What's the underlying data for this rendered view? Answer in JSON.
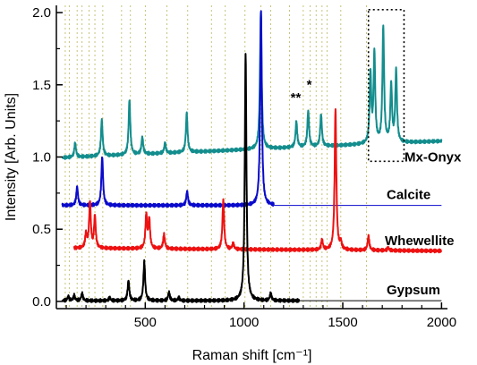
{
  "chart_data": {
    "type": "line",
    "xlabel": "Raman shift [cm⁻¹]",
    "ylabel": "Intensity [Arb. Units]",
    "xlim": [
      50,
      2030
    ],
    "ylim": [
      -0.05,
      2.05
    ],
    "xticks": [
      500,
      1000,
      1500,
      2000
    ],
    "xtick_labels": [
      "500",
      "1000",
      "1500",
      "2000"
    ],
    "xminor_step": 100,
    "yticks": [
      0.0,
      0.5,
      1.0,
      1.5,
      2.0
    ],
    "ytick_labels": [
      "0.0",
      "0.5",
      "1.0",
      "1.5",
      "2.0"
    ],
    "yminor_step": 0.25,
    "reference_lines_x": [
      95,
      115,
      155,
      180,
      215,
      245,
      285,
      380,
      425,
      500,
      610,
      715,
      835,
      905,
      1005,
      1085,
      1135,
      1230,
      1300,
      1335,
      1365,
      1395,
      1420,
      1490,
      1620
    ],
    "annotations": [
      {
        "text": "**",
        "x": 1262,
        "y": 1.38
      },
      {
        "text": "*",
        "x": 1330,
        "y": 1.47
      }
    ],
    "highlight_box": {
      "x": [
        1630,
        1810
      ],
      "y": [
        0.97,
        2.02
      ]
    },
    "series": [
      {
        "name": "Mx-Onyx",
        "color": "#138d8d",
        "baseline": 1.05,
        "slope": 6e-05,
        "x_start": 80,
        "x_end": 2000,
        "peaks": [
          [
            145,
            0.1
          ],
          [
            280,
            0.25
          ],
          [
            420,
            0.38
          ],
          [
            485,
            0.12
          ],
          [
            600,
            0.07
          ],
          [
            710,
            0.27
          ],
          [
            1085,
            0.95
          ],
          [
            1265,
            0.18
          ],
          [
            1325,
            0.25
          ],
          [
            1390,
            0.22
          ],
          [
            1640,
            0.48
          ],
          [
            1660,
            0.62
          ],
          [
            1705,
            0.8
          ],
          [
            1745,
            0.4
          ],
          [
            1770,
            0.5
          ]
        ]
      },
      {
        "name": "Calcite",
        "color": "#0a0acc",
        "baseline": 0.665,
        "slope": 0.0,
        "x_start": 80,
        "x_end": 1150,
        "tail_end": 2000,
        "peaks": [
          [
            155,
            0.13
          ],
          [
            282,
            0.34
          ],
          [
            712,
            0.1
          ],
          [
            1086,
            1.34
          ]
        ]
      },
      {
        "name": "Whewellite",
        "color": "#ee1111",
        "baseline": 0.36,
        "slope": -1e-05,
        "x_start": 140,
        "x_end": 2000,
        "peaks": [
          [
            200,
            0.1
          ],
          [
            220,
            0.32
          ],
          [
            245,
            0.22
          ],
          [
            505,
            0.23
          ],
          [
            520,
            0.2
          ],
          [
            595,
            0.1
          ],
          [
            895,
            0.34
          ],
          [
            945,
            0.04
          ],
          [
            1395,
            0.07
          ],
          [
            1463,
            0.97
          ],
          [
            1490,
            0.05
          ],
          [
            1630,
            0.1
          ],
          [
            1730,
            0.02
          ]
        ]
      },
      {
        "name": "Gypsum",
        "color": "#000000",
        "baseline": 0.005,
        "slope": 0.0,
        "x_start": 80,
        "x_end": 1280,
        "tail_end": 2000,
        "peaks": [
          [
            110,
            0.03
          ],
          [
            140,
            0.035
          ],
          [
            180,
            0.05
          ],
          [
            320,
            0.02
          ],
          [
            415,
            0.14
          ],
          [
            495,
            0.27
          ],
          [
            620,
            0.06
          ],
          [
            670,
            0.02
          ],
          [
            1008,
            1.7
          ],
          [
            1135,
            0.05
          ]
        ]
      }
    ]
  }
}
